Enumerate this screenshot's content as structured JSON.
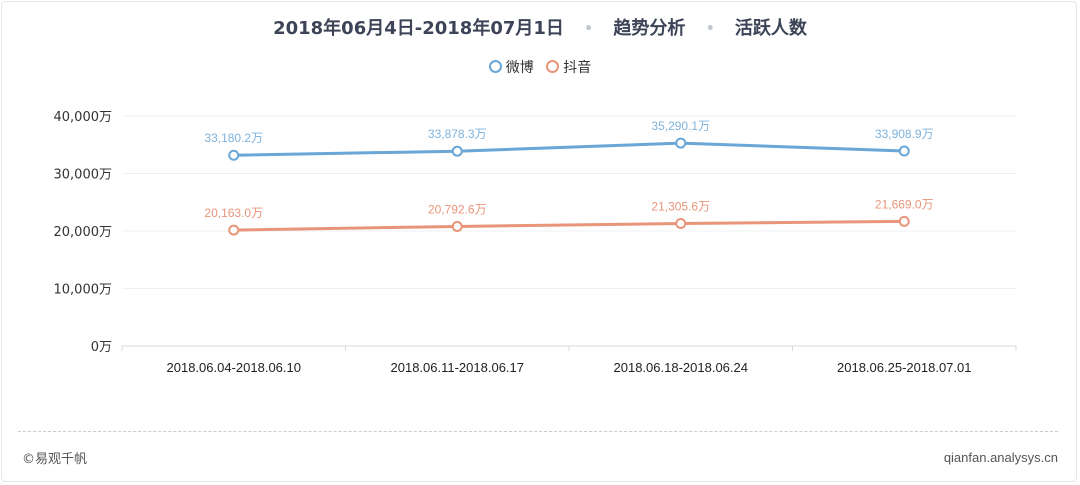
{
  "title": {
    "date_range": "2018年06月4日-2018年07月1日",
    "separator": "•",
    "section": "趋势分析",
    "metric": "活跃人数"
  },
  "chart_data": {
    "type": "line",
    "categories": [
      "2018.06.04-2018.06.10",
      "2018.06.11-2018.06.17",
      "2018.06.18-2018.06.24",
      "2018.06.25-2018.07.01"
    ],
    "series": [
      {
        "name": "微博",
        "color": "#6aa6d6",
        "label_color": "#7fb3dc",
        "values": [
          33180.2,
          33878.3,
          35290.1,
          33908.9
        ],
        "labels": [
          "33,180.2万",
          "33,878.3万",
          "35,290.1万",
          "33,908.9万"
        ]
      },
      {
        "name": "抖音",
        "color": "#e8957a",
        "label_color": "#e8957a",
        "values": [
          20163.0,
          20792.6,
          21305.6,
          21669.0
        ],
        "labels": [
          "20,163.0万",
          "20,792.6万",
          "21,305.6万",
          "21,669.0万"
        ]
      }
    ],
    "ylim": [
      0,
      40000
    ],
    "yticks": [
      0,
      10000,
      20000,
      30000,
      40000
    ],
    "ytick_labels": [
      "0万",
      "10,000万",
      "20,000万",
      "30,000万",
      "40,000万"
    ],
    "grid": true,
    "legend_position": "top-center"
  },
  "footer": {
    "left": "©易观千帆",
    "right": "qianfan.analysys.cn"
  }
}
